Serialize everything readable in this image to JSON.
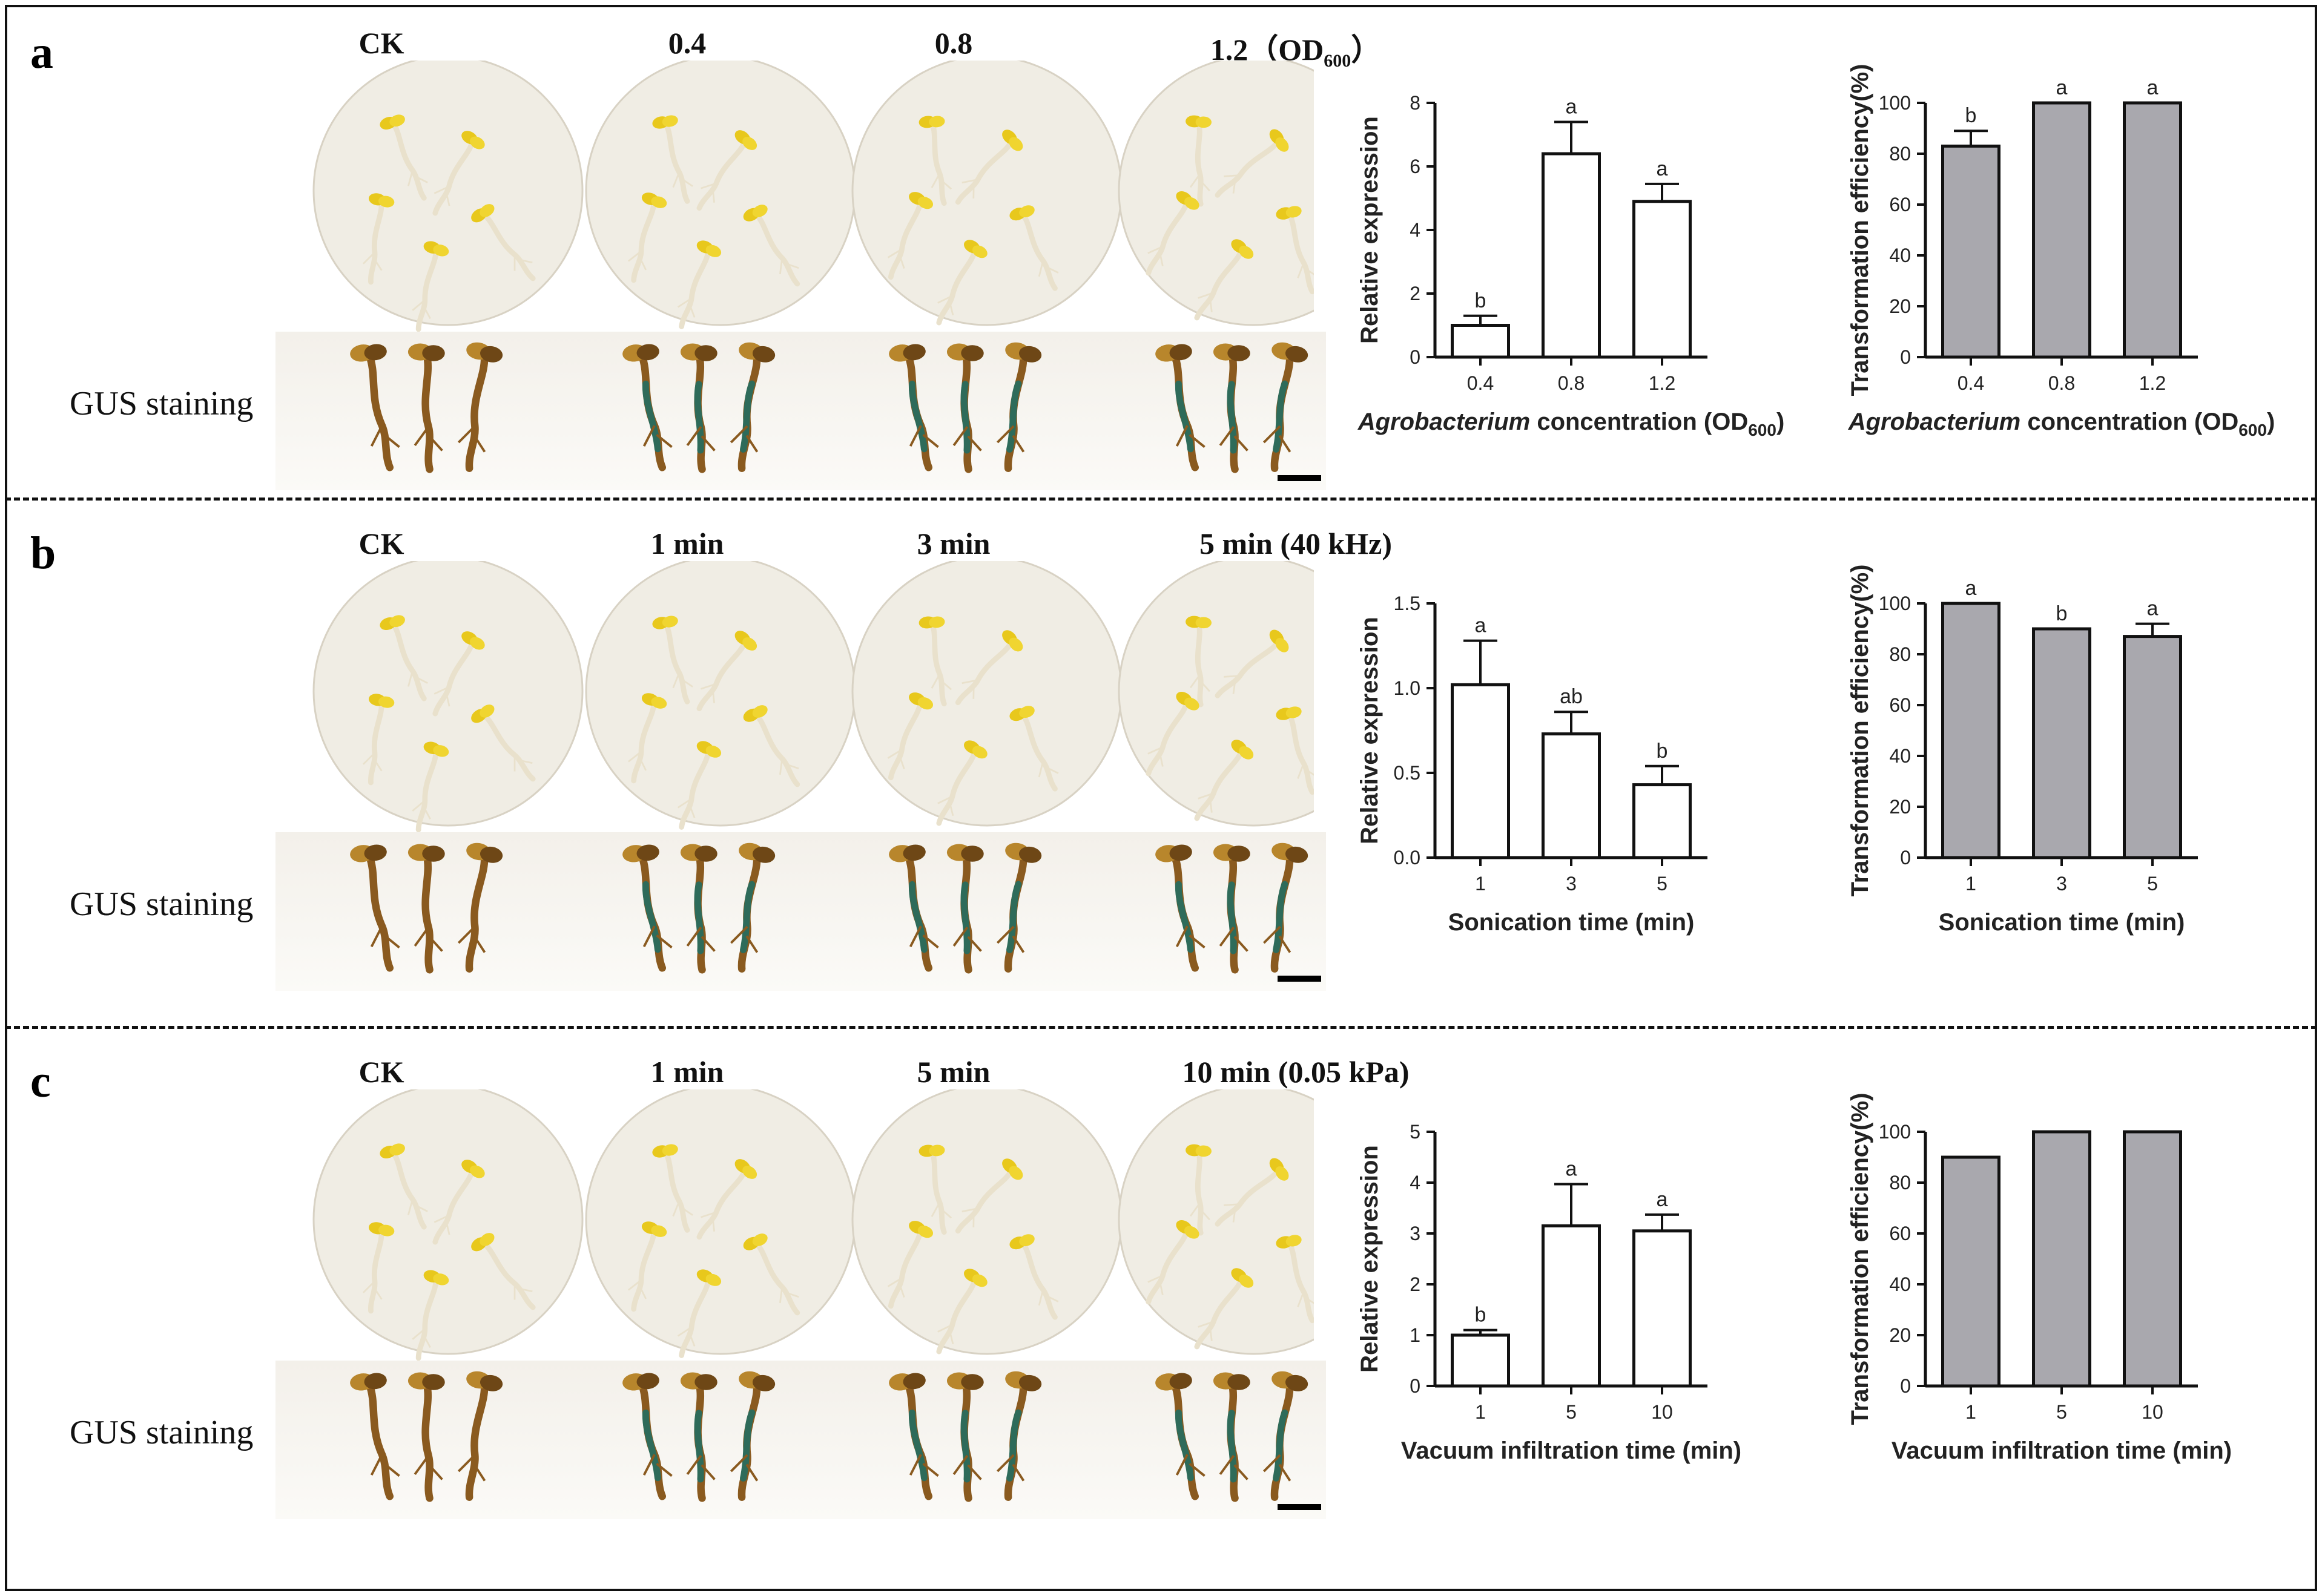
{
  "colors": {
    "bar_open": "#ffffff",
    "bar_gray": "#a9a8ae",
    "axis": "#111111",
    "dish_bg": "#f0ede4",
    "cotyledon": "#e8c81c",
    "stem_pale": "#e9e1cc",
    "gus_blue": "#2e6b5a",
    "gus_brown": "#8a5a1f"
  },
  "panels": [
    {
      "letter": "a",
      "conditions": [
        "CK",
        "0.4",
        "0.8",
        "1.2（OD"
      ],
      "condition_sub": "600",
      "condition_close": "）",
      "gus_label": "GUS staining",
      "expr_chart": {
        "type": "bar",
        "categories": [
          "0.4",
          "0.8",
          "1.2"
        ],
        "values": [
          1.0,
          6.4,
          4.9
        ],
        "errors": [
          0.3,
          1.0,
          0.55
        ],
        "sig_letters": [
          "b",
          "a",
          "a"
        ],
        "ylabel": "Relative expression",
        "xlabel_italic": "Agrobacterium",
        "xlabel_rest": " concentration (OD",
        "xlabel_sub": "600",
        "xlabel_close": ")",
        "ylim": [
          0,
          8
        ],
        "yticks": [
          "0",
          "2",
          "4",
          "6",
          "8"
        ]
      },
      "eff_chart": {
        "type": "bar",
        "categories": [
          "0.4",
          "0.8",
          "1.2"
        ],
        "values": [
          83,
          100,
          100
        ],
        "errors": [
          6,
          0,
          0
        ],
        "sig_letters": [
          "b",
          "a",
          "a"
        ],
        "ylabel": "Transformation efficiency(%)",
        "xlabel_italic": "Agrobacterium",
        "xlabel_rest": " concentration (OD",
        "xlabel_sub": "600",
        "xlabel_close": ")",
        "ylim": [
          0,
          100
        ],
        "yticks": [
          "0",
          "20",
          "40",
          "60",
          "80",
          "100"
        ]
      }
    },
    {
      "letter": "b",
      "conditions": [
        "CK",
        "1 min",
        "3 min",
        "5 min (40 kHz)"
      ],
      "gus_label": "GUS staining",
      "expr_chart": {
        "type": "bar",
        "categories": [
          "1",
          "3",
          "5"
        ],
        "values": [
          1.02,
          0.73,
          0.43
        ],
        "errors": [
          0.26,
          0.13,
          0.11
        ],
        "sig_letters": [
          "a",
          "ab",
          "b"
        ],
        "ylabel": "Relative expression",
        "xlabel": "Sonication time (min)",
        "ylim": [
          0,
          1.5
        ],
        "yticks": [
          "0.0",
          "0.5",
          "1.0",
          "1.5"
        ]
      },
      "eff_chart": {
        "type": "bar",
        "categories": [
          "1",
          "3",
          "5"
        ],
        "values": [
          100,
          90,
          87
        ],
        "errors": [
          0,
          0,
          5
        ],
        "sig_letters": [
          "a",
          "b",
          "a"
        ],
        "ylabel": "Transformation efficiency(%)",
        "xlabel": "Sonication time (min)",
        "ylim": [
          0,
          100
        ],
        "yticks": [
          "0",
          "20",
          "40",
          "60",
          "80",
          "100"
        ]
      }
    },
    {
      "letter": "c",
      "conditions": [
        "CK",
        "1 min",
        "5 min",
        "10 min (0.05 kPa)"
      ],
      "gus_label": "GUS staining",
      "expr_chart": {
        "type": "bar",
        "categories": [
          "1",
          "5",
          "10"
        ],
        "values": [
          1.0,
          3.15,
          3.05
        ],
        "errors": [
          0.1,
          0.82,
          0.32
        ],
        "sig_letters": [
          "b",
          "a",
          "a"
        ],
        "ylabel": "Relative expression",
        "xlabel": "Vacuum infiltration time (min)",
        "ylim": [
          0,
          5
        ],
        "yticks": [
          "0",
          "1",
          "2",
          "3",
          "4",
          "5"
        ]
      },
      "eff_chart": {
        "type": "bar",
        "categories": [
          "1",
          "5",
          "10"
        ],
        "values": [
          90,
          100,
          100
        ],
        "errors": [
          0,
          0,
          0
        ],
        "sig_letters": [
          "",
          "",
          ""
        ],
        "ylabel": "Transformation efficiency(%)",
        "xlabel": "Vacuum infiltration time (min)",
        "ylim": [
          0,
          100
        ],
        "yticks": [
          "0",
          "20",
          "40",
          "60",
          "80",
          "100"
        ]
      }
    }
  ]
}
